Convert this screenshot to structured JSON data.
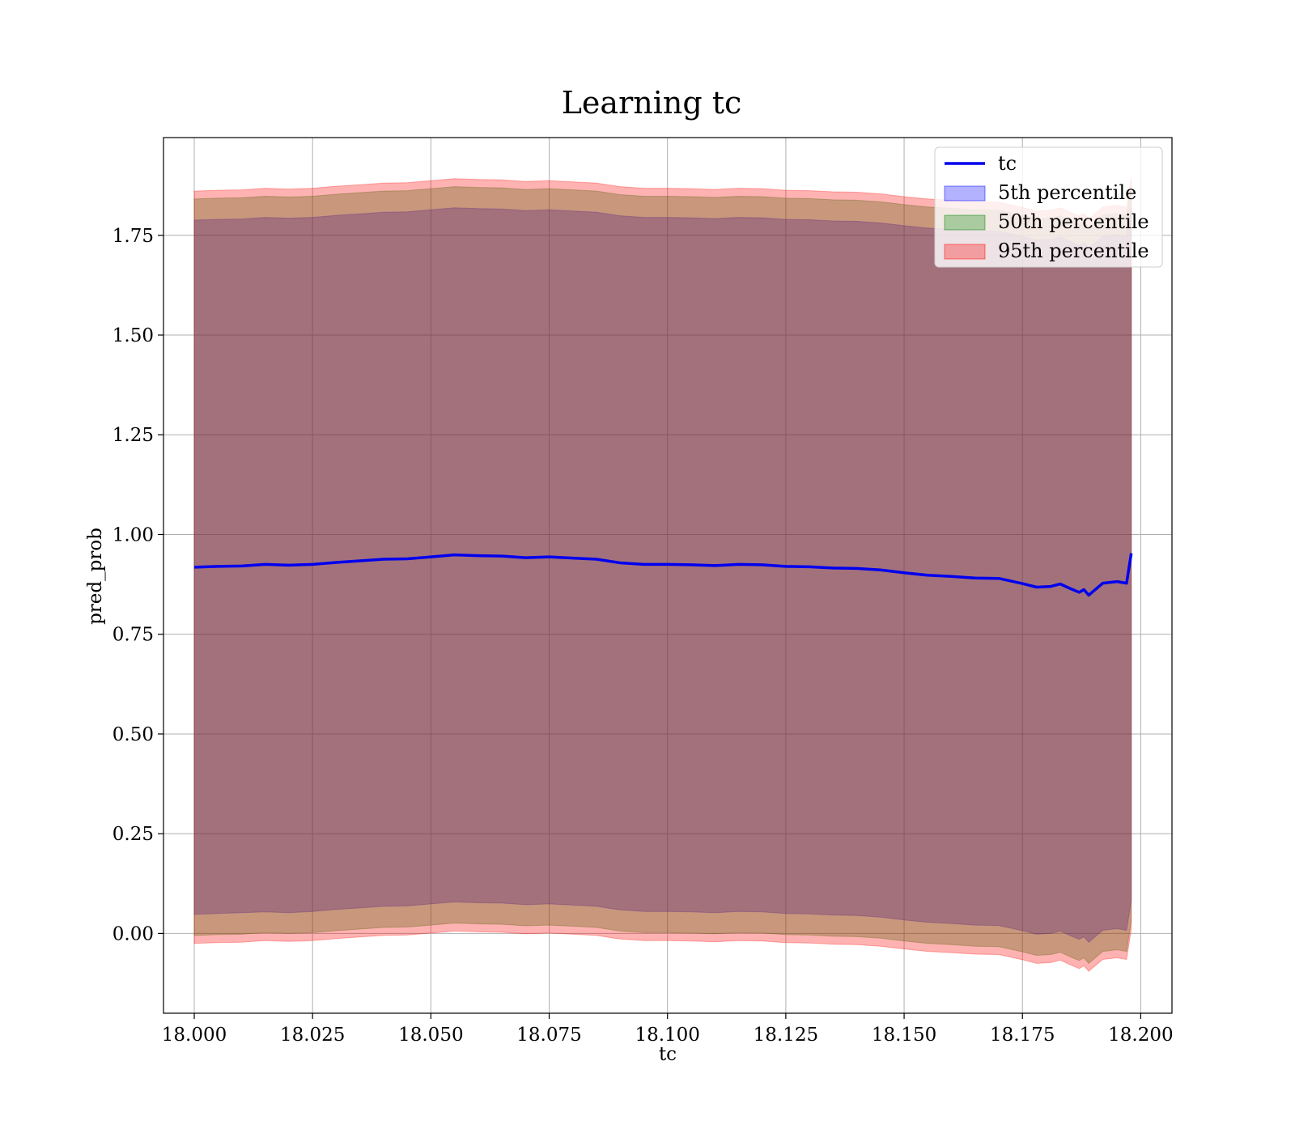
{
  "chart_data": {
    "type": "area",
    "title": "Learning tc",
    "xlabel": "tc",
    "ylabel": "pred_prob",
    "xlim": [
      17.9935,
      18.2066
    ],
    "ylim": [
      -0.2,
      1.995
    ],
    "x_ticks": [
      18.0,
      18.025,
      18.05,
      18.075,
      18.1,
      18.125,
      18.15,
      18.175,
      18.2
    ],
    "x_tick_labels": [
      "18.000",
      "18.025",
      "18.050",
      "18.075",
      "18.100",
      "18.125",
      "18.150",
      "18.175",
      "18.200"
    ],
    "y_ticks": [
      0.0,
      0.25,
      0.5,
      0.75,
      1.0,
      1.25,
      1.5,
      1.75
    ],
    "y_tick_labels": [
      "0.00",
      "0.25",
      "0.50",
      "0.75",
      "1.00",
      "1.25",
      "1.50",
      "1.75"
    ],
    "grid": true,
    "legend_position": "top-right",
    "x": [
      18.0,
      18.005,
      18.01,
      18.015,
      18.02,
      18.025,
      18.03,
      18.035,
      18.04,
      18.045,
      18.05,
      18.055,
      18.06,
      18.065,
      18.07,
      18.075,
      18.08,
      18.085,
      18.09,
      18.095,
      18.1,
      18.105,
      18.11,
      18.115,
      18.12,
      18.125,
      18.13,
      18.135,
      18.14,
      18.145,
      18.15,
      18.155,
      18.16,
      18.165,
      18.17,
      18.175,
      18.178,
      18.181,
      18.183,
      18.185,
      18.187,
      18.188,
      18.189,
      18.192,
      18.195,
      18.197,
      18.198
    ],
    "series": [
      {
        "name": "tc",
        "kind": "line",
        "color": "#0000ee",
        "values": [
          0.918,
          0.92,
          0.921,
          0.925,
          0.923,
          0.925,
          0.93,
          0.934,
          0.938,
          0.939,
          0.944,
          0.949,
          0.947,
          0.946,
          0.942,
          0.944,
          0.941,
          0.938,
          0.929,
          0.925,
          0.925,
          0.924,
          0.922,
          0.925,
          0.924,
          0.92,
          0.919,
          0.916,
          0.915,
          0.911,
          0.904,
          0.898,
          0.895,
          0.891,
          0.89,
          0.877,
          0.868,
          0.87,
          0.876,
          0.865,
          0.855,
          0.862,
          0.848,
          0.878,
          0.882,
          0.878,
          0.953
        ]
      },
      {
        "name": "5th percentile",
        "kind": "band",
        "color": "#0000ff",
        "opacity": 0.3,
        "lower": [
          0.048,
          0.05,
          0.052,
          0.054,
          0.052,
          0.055,
          0.06,
          0.064,
          0.068,
          0.069,
          0.074,
          0.079,
          0.077,
          0.076,
          0.072,
          0.074,
          0.071,
          0.068,
          0.059,
          0.055,
          0.055,
          0.054,
          0.052,
          0.055,
          0.054,
          0.05,
          0.049,
          0.046,
          0.045,
          0.041,
          0.034,
          0.028,
          0.025,
          0.021,
          0.02,
          0.007,
          -0.002,
          0.0,
          0.006,
          -0.005,
          -0.015,
          -0.008,
          -0.022,
          0.008,
          0.012,
          0.008,
          0.083
        ],
        "upper": [
          1.788,
          1.79,
          1.791,
          1.795,
          1.793,
          1.795,
          1.8,
          1.804,
          1.808,
          1.809,
          1.814,
          1.819,
          1.817,
          1.816,
          1.812,
          1.814,
          1.811,
          1.808,
          1.799,
          1.795,
          1.795,
          1.794,
          1.792,
          1.795,
          1.794,
          1.79,
          1.789,
          1.786,
          1.785,
          1.781,
          1.774,
          1.768,
          1.765,
          1.761,
          1.76,
          1.747,
          1.738,
          1.74,
          1.746,
          1.735,
          1.725,
          1.732,
          1.718,
          1.748,
          1.752,
          1.748,
          1.823
        ]
      },
      {
        "name": "50th percentile",
        "kind": "band",
        "color": "#008000",
        "opacity": 0.3,
        "lower": [
          -0.005,
          -0.003,
          -0.002,
          0.002,
          0.0,
          0.002,
          0.007,
          0.011,
          0.015,
          0.016,
          0.021,
          0.026,
          0.024,
          0.023,
          0.019,
          0.021,
          0.018,
          0.015,
          0.006,
          0.002,
          0.002,
          0.001,
          -0.001,
          0.002,
          0.001,
          -0.003,
          -0.004,
          -0.007,
          -0.008,
          -0.012,
          -0.019,
          -0.025,
          -0.028,
          -0.032,
          -0.033,
          -0.046,
          -0.055,
          -0.053,
          -0.047,
          -0.058,
          -0.068,
          -0.061,
          -0.075,
          -0.045,
          -0.041,
          -0.045,
          0.03
        ],
        "upper": [
          1.841,
          1.843,
          1.844,
          1.848,
          1.846,
          1.848,
          1.853,
          1.857,
          1.861,
          1.862,
          1.867,
          1.872,
          1.87,
          1.869,
          1.865,
          1.867,
          1.864,
          1.861,
          1.852,
          1.848,
          1.848,
          1.847,
          1.845,
          1.848,
          1.847,
          1.843,
          1.842,
          1.839,
          1.838,
          1.834,
          1.827,
          1.821,
          1.818,
          1.814,
          1.813,
          1.8,
          1.791,
          1.793,
          1.799,
          1.788,
          1.778,
          1.785,
          1.771,
          1.801,
          1.805,
          1.801,
          1.876
        ]
      },
      {
        "name": "95th percentile",
        "kind": "band",
        "color": "#ff0000",
        "opacity": 0.3,
        "lower": [
          -0.025,
          -0.023,
          -0.022,
          -0.018,
          -0.02,
          -0.018,
          -0.013,
          -0.009,
          -0.005,
          -0.004,
          0.001,
          0.006,
          0.004,
          0.003,
          -0.001,
          0.001,
          -0.002,
          -0.005,
          -0.014,
          -0.018,
          -0.018,
          -0.019,
          -0.021,
          -0.018,
          -0.019,
          -0.023,
          -0.024,
          -0.027,
          -0.028,
          -0.032,
          -0.039,
          -0.045,
          -0.048,
          -0.052,
          -0.053,
          -0.066,
          -0.075,
          -0.073,
          -0.067,
          -0.078,
          -0.088,
          -0.081,
          -0.095,
          -0.065,
          -0.061,
          -0.065,
          0.01
        ],
        "upper": [
          1.861,
          1.863,
          1.864,
          1.868,
          1.866,
          1.868,
          1.873,
          1.877,
          1.881,
          1.882,
          1.887,
          1.892,
          1.89,
          1.889,
          1.885,
          1.887,
          1.884,
          1.881,
          1.872,
          1.868,
          1.868,
          1.867,
          1.865,
          1.868,
          1.867,
          1.863,
          1.862,
          1.859,
          1.858,
          1.854,
          1.847,
          1.841,
          1.838,
          1.834,
          1.833,
          1.82,
          1.811,
          1.813,
          1.819,
          1.808,
          1.798,
          1.805,
          1.791,
          1.821,
          1.825,
          1.821,
          1.896
        ]
      }
    ]
  }
}
